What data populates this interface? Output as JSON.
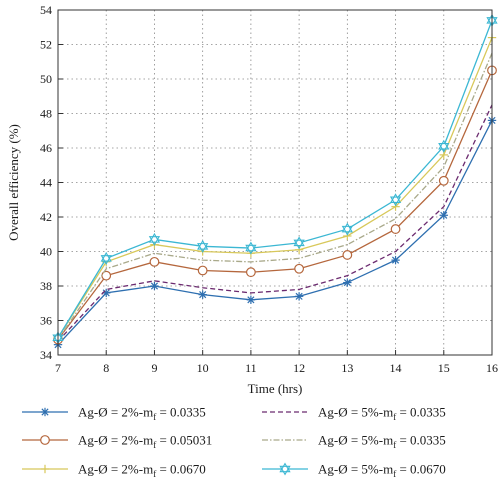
{
  "chart_data": {
    "type": "line",
    "xlabel": "Time (hrs)",
    "ylabel": "Overall efficiency (%)",
    "x": [
      7,
      8,
      9,
      10,
      11,
      12,
      13,
      14,
      15,
      16
    ],
    "xlim": [
      7,
      16
    ],
    "ylim": [
      34,
      54
    ],
    "yticks": [
      34,
      36,
      38,
      40,
      42,
      44,
      46,
      48,
      50,
      52,
      54
    ],
    "grid": true,
    "legend_position": "bottom",
    "series": [
      {
        "name": "Ag-Ø = 2%-m",
        "sub": "f",
        "suffix": " = 0.0335",
        "color": "#2e6fb0",
        "marker": "star",
        "dash": "solid",
        "values": [
          34.6,
          37.6,
          38.0,
          37.5,
          37.2,
          37.4,
          38.2,
          39.5,
          42.1,
          47.6
        ]
      },
      {
        "name": "Ag-Ø = 2%-m",
        "sub": "f",
        "suffix": " = 0.05031",
        "color": "#b5673d",
        "marker": "circle",
        "dash": "solid",
        "values": [
          34.9,
          38.6,
          39.4,
          38.9,
          38.8,
          39.0,
          39.8,
          41.3,
          44.1,
          50.5
        ]
      },
      {
        "name": "Ag-Ø = 2%-m",
        "sub": "f",
        "suffix": " = 0.0670",
        "color": "#d8c85a",
        "marker": "plus",
        "dash": "solid",
        "values": [
          35.0,
          39.4,
          40.4,
          40.0,
          39.9,
          40.1,
          40.9,
          42.6,
          45.6,
          52.4
        ]
      },
      {
        "name": "Ag-Ø = 5%-m",
        "sub": "f",
        "suffix": " = 0.0335",
        "color": "#6b2a6f",
        "marker": "none",
        "dash": "dash",
        "values": [
          34.8,
          37.8,
          38.3,
          37.9,
          37.6,
          37.8,
          38.6,
          40.0,
          42.6,
          48.5
        ]
      },
      {
        "name": "Ag-Ø = 5%-m",
        "sub": "f",
        "suffix": " = 0.0335",
        "color": "#a9a98a",
        "marker": "none",
        "dash": "dashdot",
        "values": [
          34.9,
          39.0,
          39.9,
          39.5,
          39.4,
          39.6,
          40.4,
          41.9,
          44.9,
          51.5
        ]
      },
      {
        "name": "Ag-Ø = 5%-m",
        "sub": "f",
        "suffix": " = 0.0670",
        "color": "#3bb7d3",
        "marker": "hexstar",
        "dash": "solid",
        "values": [
          35.0,
          39.6,
          40.7,
          40.3,
          40.2,
          40.5,
          41.3,
          43.0,
          46.1,
          53.4
        ]
      }
    ]
  }
}
